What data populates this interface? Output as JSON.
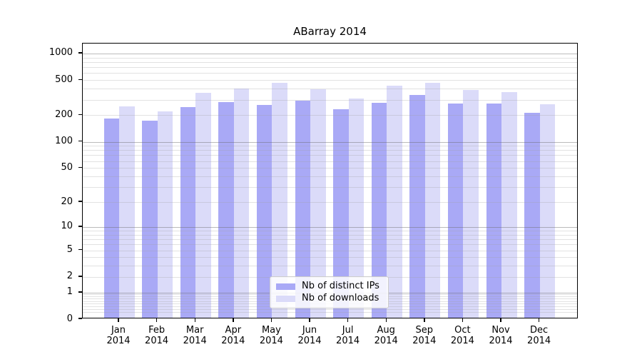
{
  "title": "ABarray 2014",
  "colors": {
    "ips_bar": "#a9a9f6",
    "downloads_bar": "#dbdbf9",
    "grid_major": "#bdbdbd",
    "grid_minor": "#e3e3e3",
    "axis": "#000000",
    "legend_border": "#cccccc"
  },
  "legend": {
    "entries": [
      {
        "label": "Nb of distinct IPs",
        "series": "ips"
      },
      {
        "label": "Nb of downloads",
        "series": "downloads"
      }
    ]
  },
  "chart_data": {
    "type": "bar",
    "title": "ABarray 2014",
    "months": [
      "Jan",
      "Feb",
      "Mar",
      "Apr",
      "May",
      "Jun",
      "Jul",
      "Aug",
      "Sep",
      "Oct",
      "Nov",
      "Dec"
    ],
    "year": "2014",
    "series": [
      {
        "name": "Nb of distinct IPs",
        "values": [
          178,
          167,
          238,
          274,
          250,
          284,
          224,
          268,
          327,
          263,
          263,
          205
        ]
      },
      {
        "name": "Nb of downloads",
        "values": [
          245,
          215,
          343,
          386,
          446,
          382,
          296,
          420,
          446,
          370,
          355,
          258
        ]
      }
    ],
    "y_scale": "log1p",
    "y_ticks": [
      0,
      1,
      2,
      5,
      10,
      20,
      50,
      100,
      200,
      500,
      1000
    ],
    "ylim": [
      0,
      1280
    ],
    "grid": "horizontal minor log gridlines, darker at powers of 10",
    "legend_position": "inside plot, lower center"
  }
}
